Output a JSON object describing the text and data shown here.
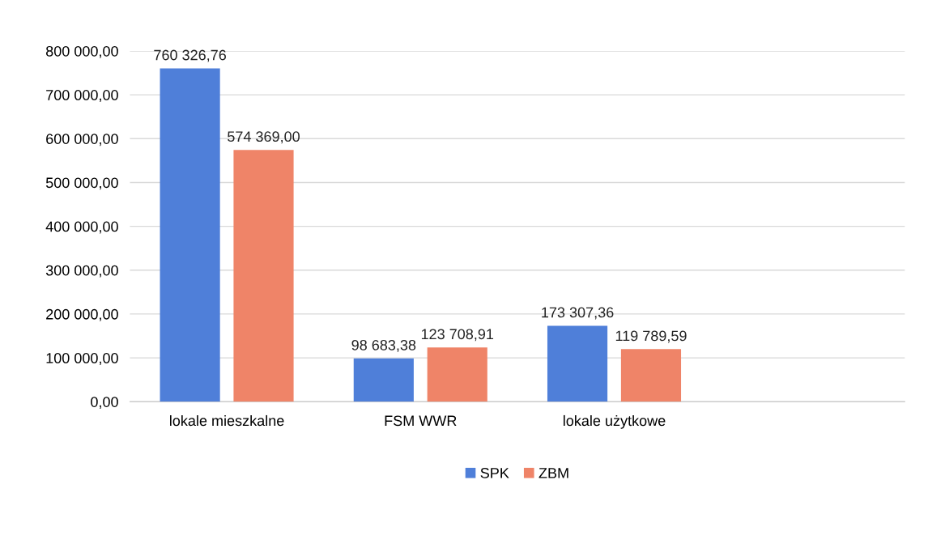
{
  "chart_data": {
    "type": "bar",
    "categories": [
      "lokale mieszkalne",
      "FSM WWR",
      "lokale użytkowe",
      null
    ],
    "series": [
      {
        "name": "SPK",
        "color": "#4f7fd9",
        "values": [
          760326.76,
          98683.38,
          173307.36,
          null
        ],
        "value_labels": [
          "760 326,76",
          "98 683,38",
          "173 307,36",
          null
        ]
      },
      {
        "name": "ZBM",
        "color": "#ef8468",
        "values": [
          574369.0,
          123708.91,
          119789.59,
          null
        ],
        "value_labels": [
          "574 369,00",
          "123 708,91",
          "119 789,59",
          null
        ]
      }
    ],
    "ylim": [
      0,
      800000
    ],
    "yticks": [
      {
        "value": 0,
        "label": "0,00"
      },
      {
        "value": 100000,
        "label": "100 000,00"
      },
      {
        "value": 200000,
        "label": "200 000,00"
      },
      {
        "value": 300000,
        "label": "300 000,00"
      },
      {
        "value": 400000,
        "label": "400 000,00"
      },
      {
        "value": 500000,
        "label": "500 000,00"
      },
      {
        "value": 600000,
        "label": "600 000,00"
      },
      {
        "value": 700000,
        "label": "700 000,00"
      },
      {
        "value": 800000,
        "label": "800 000,00"
      }
    ],
    "grid": "y",
    "legend": "bottom"
  }
}
